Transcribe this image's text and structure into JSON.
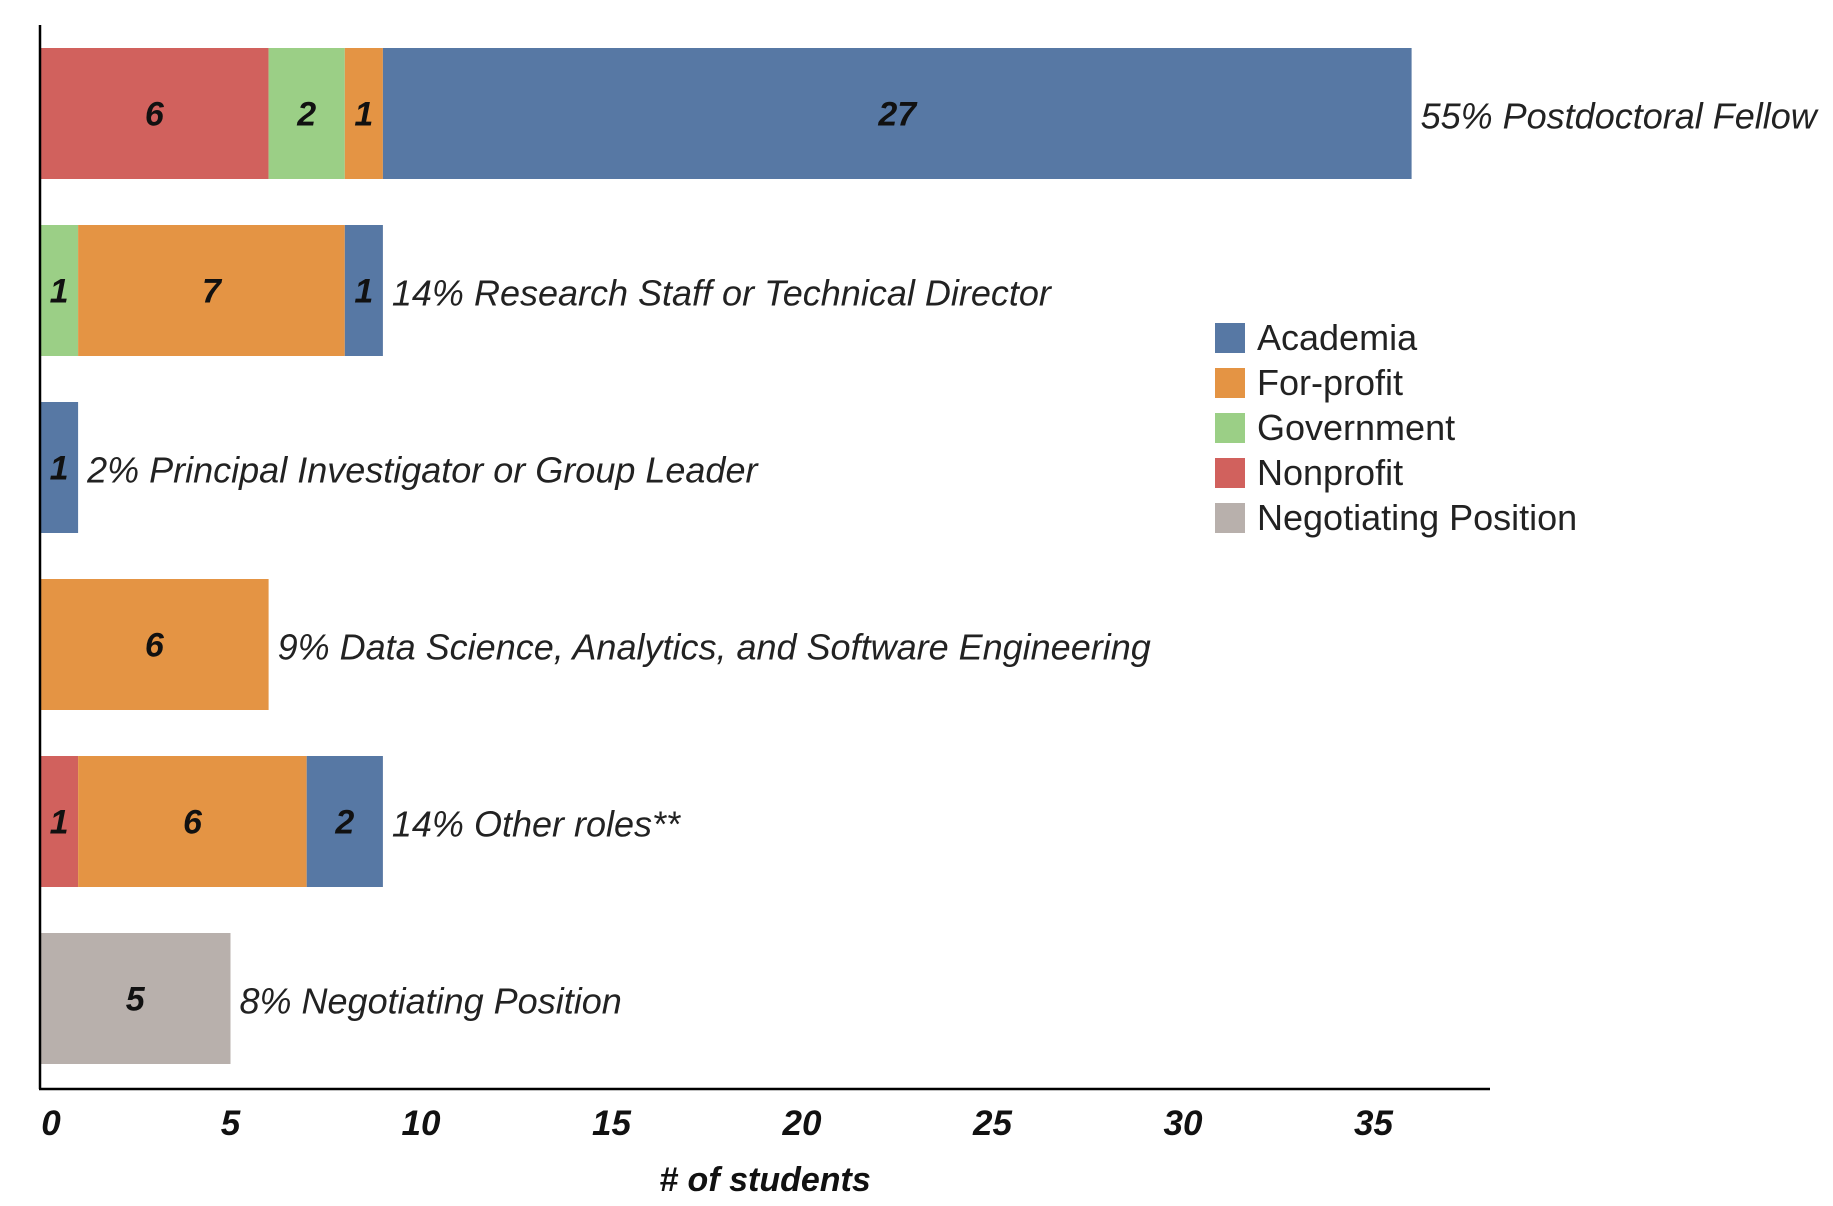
{
  "chart_data": {
    "type": "stacked-bar-horizontal",
    "title": "",
    "xlabel": "# of students",
    "ylabel": "",
    "xlim": [
      0,
      38
    ],
    "xticks": [
      0,
      5,
      10,
      15,
      20,
      25,
      30,
      35
    ],
    "grid": false,
    "legend_position": "right-middle",
    "series_colors": {
      "Academia": "#5778a4",
      "For-profit": "#e49444",
      "Government": "#9bcf86",
      "Nonprofit": "#d1615d",
      "Negotiating Position": "#b8b0ac"
    },
    "legend": [
      "Academia",
      "For-profit",
      "Government",
      "Nonprofit",
      "Negotiating Position"
    ],
    "rows": [
      {
        "label": "55% Postdoctoral Fellow",
        "segments": [
          {
            "series": "Nonprofit",
            "value": 6,
            "label": "6"
          },
          {
            "series": "Government",
            "value": 2,
            "label": "2"
          },
          {
            "series": "For-profit",
            "value": 1,
            "label": "1"
          },
          {
            "series": "Academia",
            "value": 27,
            "label": "27"
          }
        ]
      },
      {
        "label": "14% Research Staff or Technical Director",
        "segments": [
          {
            "series": "Government",
            "value": 1,
            "label": "1"
          },
          {
            "series": "For-profit",
            "value": 7,
            "label": "7"
          },
          {
            "series": "Academia",
            "value": 1,
            "label": "1"
          }
        ]
      },
      {
        "label": "2% Principal Investigator or Group Leader",
        "segments": [
          {
            "series": "Academia",
            "value": 1,
            "label": "1"
          }
        ]
      },
      {
        "label": "9% Data Science, Analytics, and Software Engineering",
        "segments": [
          {
            "series": "For-profit",
            "value": 6,
            "label": "6"
          }
        ]
      },
      {
        "label": "14% Other roles**",
        "segments": [
          {
            "series": "Nonprofit",
            "value": 1,
            "label": "1"
          },
          {
            "series": "For-profit",
            "value": 6,
            "label": "6"
          },
          {
            "series": "Academia",
            "value": 2,
            "label": "2"
          }
        ]
      },
      {
        "label": "8% Negotiating Position",
        "segments": [
          {
            "series": "Negotiating Position",
            "value": 5,
            "label": "5"
          }
        ]
      }
    ]
  }
}
